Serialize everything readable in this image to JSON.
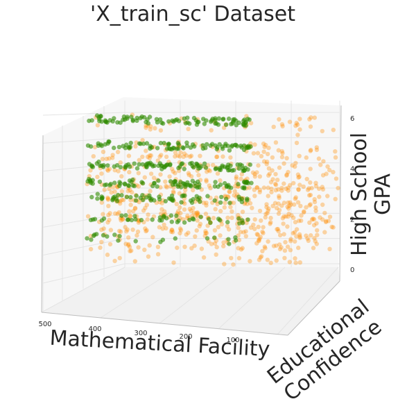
{
  "chart_data": {
    "type": "scatter",
    "title": "'X_train_sc'  Dataset",
    "xlabel": "Mathematical Facility",
    "ylabel_line1": "Educational",
    "ylabel_line2": "Confidence",
    "zlabel_line1": "High School",
    "zlabel_line2": "GPA",
    "x_ticks": [
      "500",
      "400",
      "300",
      "200",
      "100"
    ],
    "z_ticks": [
      "0",
      "2",
      "4",
      "6"
    ],
    "xlim": [
      0,
      500
    ],
    "zlim": [
      0,
      6
    ],
    "grid": true,
    "series": [
      {
        "color": "#ff8c00",
        "opacity": 0.35,
        "bands": [
          {
            "z": 5.6,
            "count": 40
          },
          {
            "z": 4.6,
            "count": 60
          },
          {
            "z": 4.0,
            "count": 70
          },
          {
            "z": 3.4,
            "count": 90
          },
          {
            "z": 2.8,
            "count": 110
          },
          {
            "z": 2.2,
            "count": 120
          },
          {
            "z": 1.6,
            "count": 110
          },
          {
            "z": 1.0,
            "count": 80
          },
          {
            "z": 0.4,
            "count": 40
          }
        ]
      },
      {
        "color": "#2e8b00",
        "opacity": 0.6,
        "bands": [
          {
            "z": 5.7,
            "count": 90
          },
          {
            "z": 4.7,
            "count": 80
          },
          {
            "z": 3.9,
            "count": 90
          },
          {
            "z": 3.2,
            "count": 80
          },
          {
            "z": 2.6,
            "count": 60
          },
          {
            "z": 1.8,
            "count": 40
          },
          {
            "z": 1.0,
            "count": 20
          }
        ]
      }
    ]
  }
}
